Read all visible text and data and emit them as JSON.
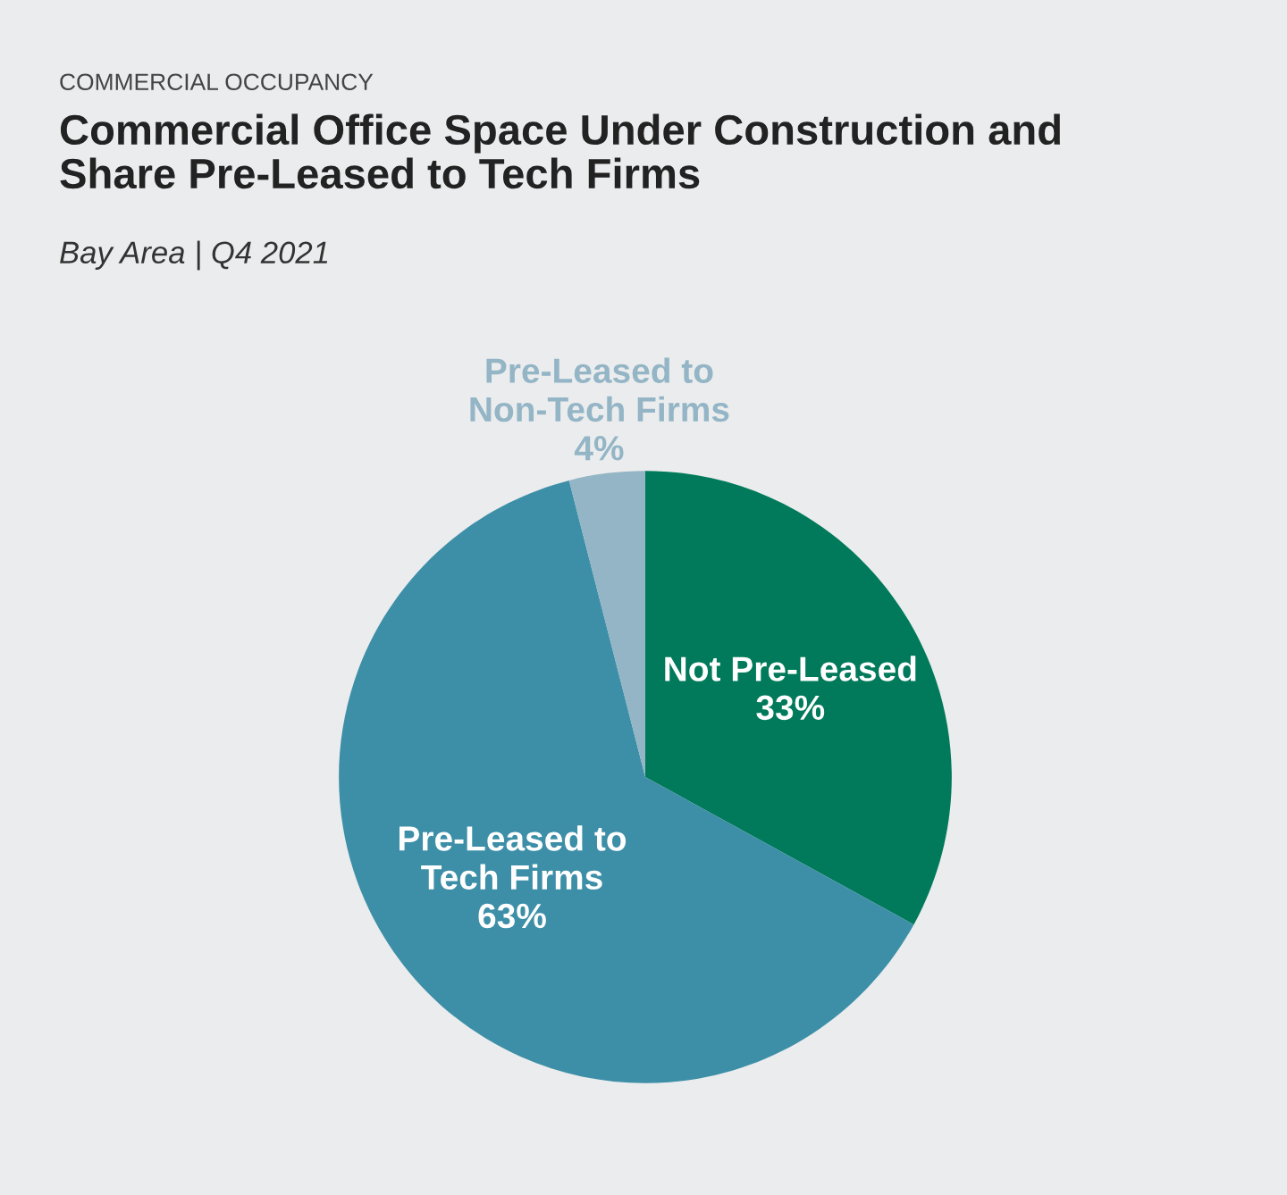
{
  "chart_data": {
    "type": "pie",
    "title": "Commercial Office Space Under Construction and\nShare Pre-Leased to Tech Firms",
    "subtitle": "Bay Area | Q4 2021",
    "annotations": [
      "COMMERCIAL OCCUPANCY"
    ],
    "categories": [
      "Not Pre-Leased",
      "Pre-Leased to\nTech Firms",
      "Pre-Leased to\nNon-Tech Firms"
    ],
    "values": [
      33,
      63,
      4
    ],
    "value_labels": [
      "33%",
      "63%",
      "4%"
    ],
    "colors": [
      "#007a5a",
      "#3d8fa8",
      "#93b5c6"
    ],
    "legend": false
  }
}
